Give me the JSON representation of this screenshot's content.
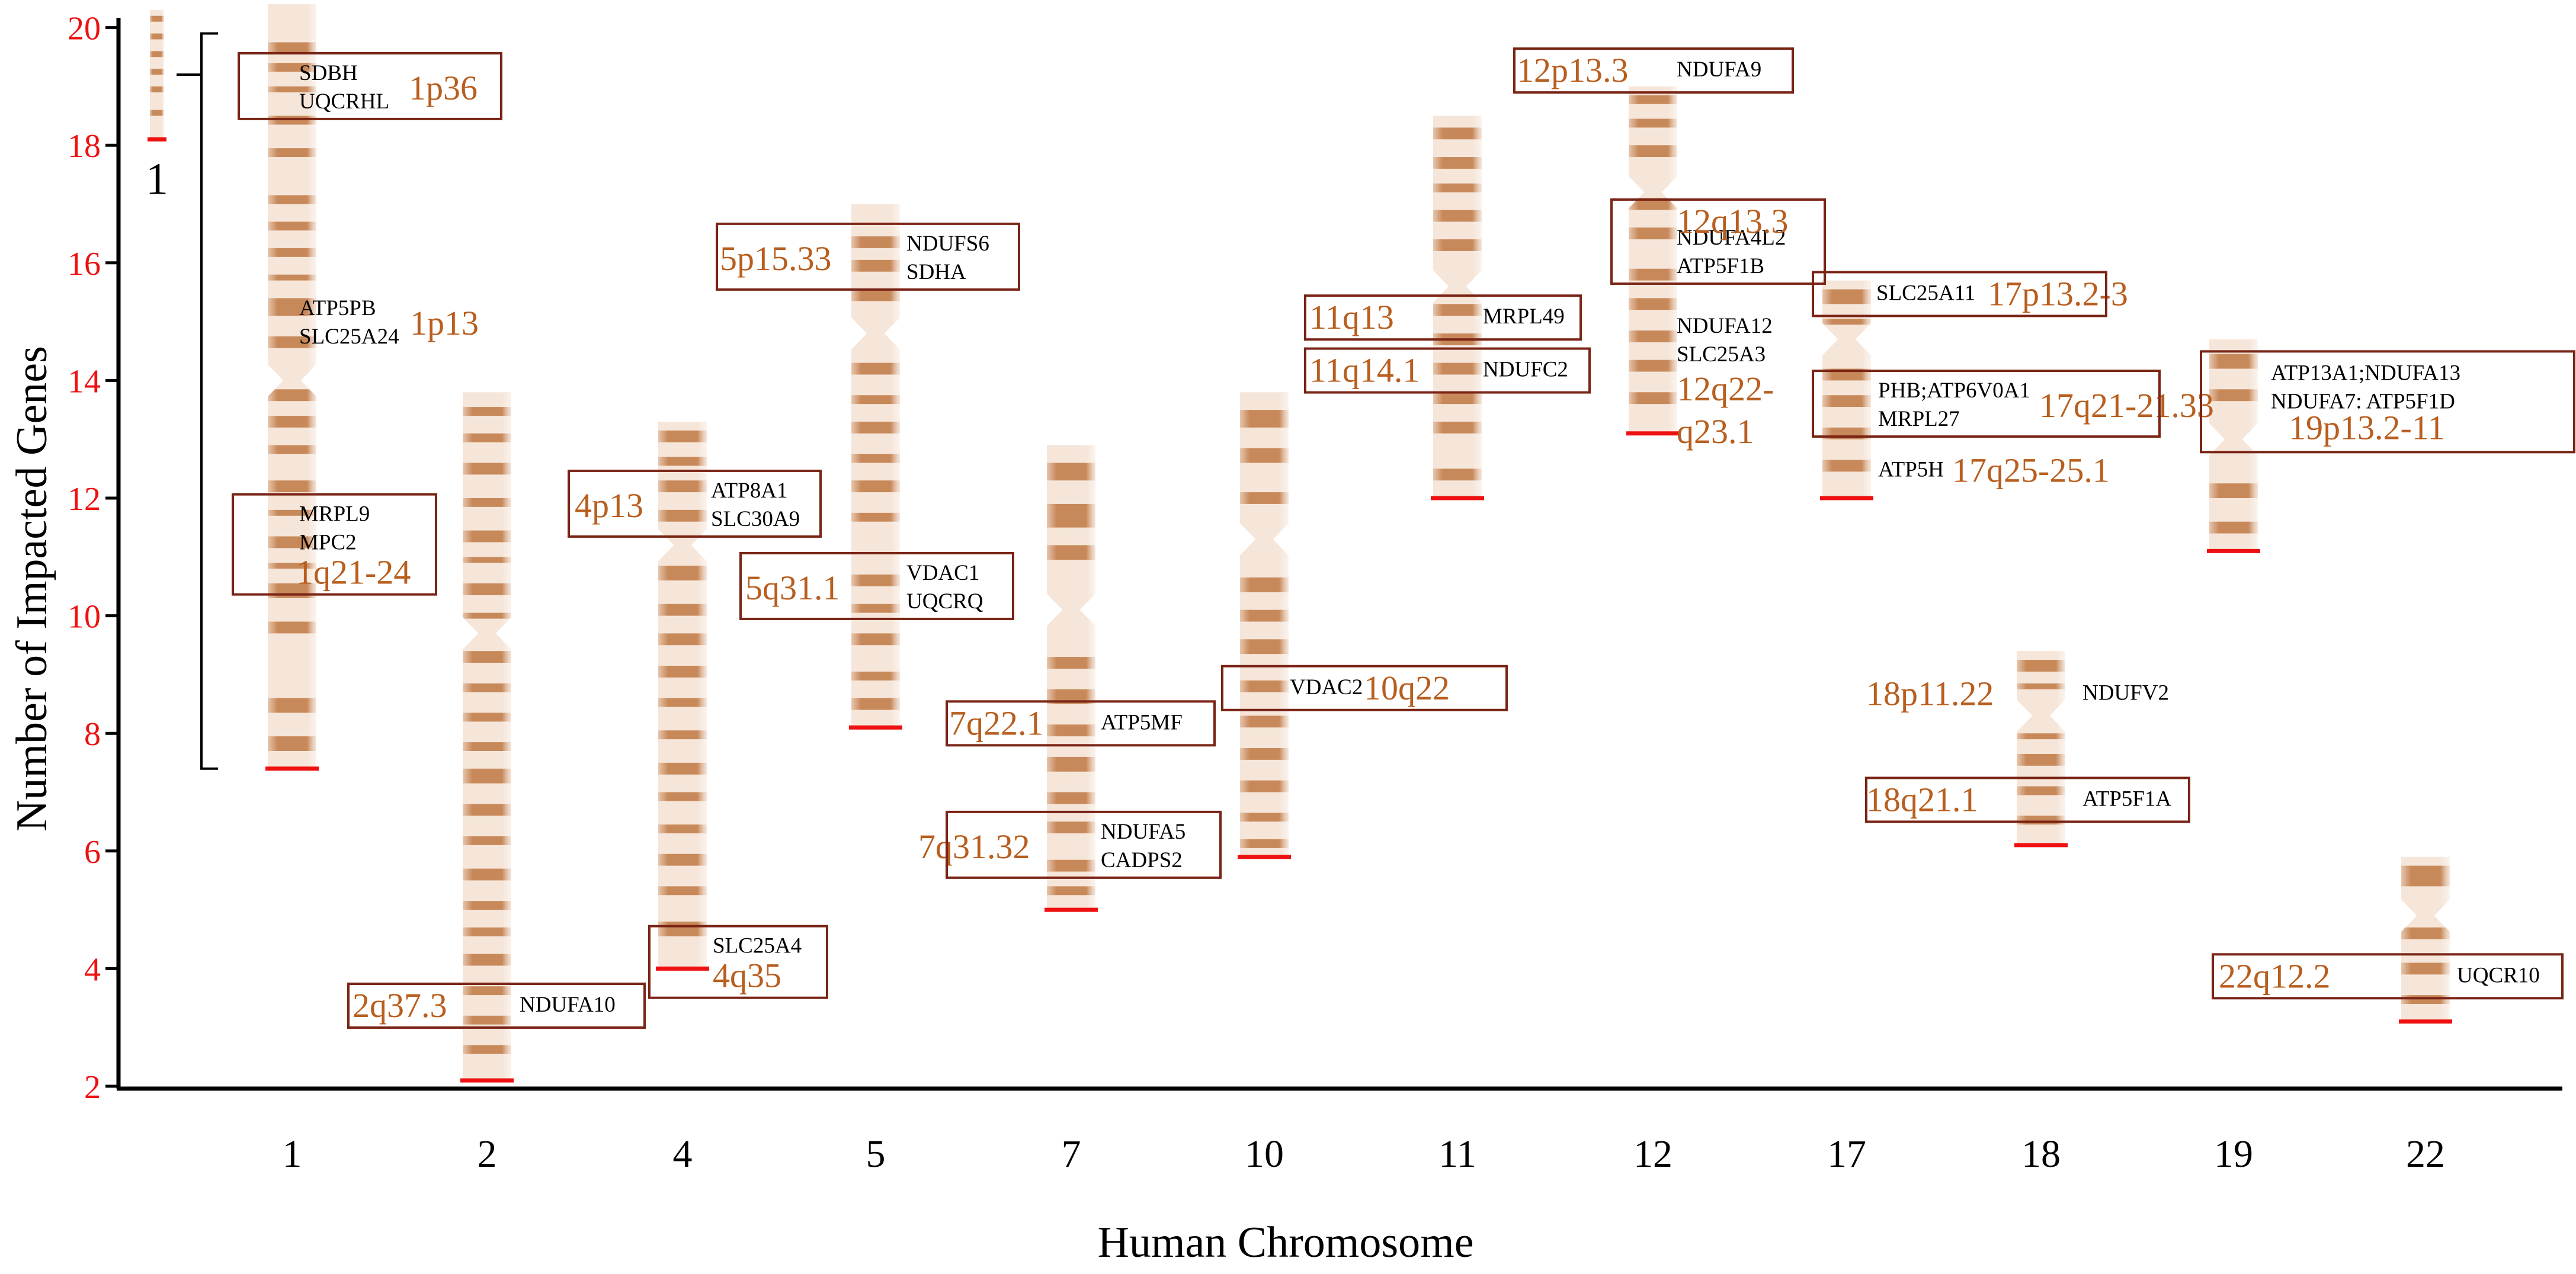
{
  "chart_data": {
    "type": "ideogram",
    "xlabel": "Human Chromosome",
    "ylabel": "Number of  Impacted Genes",
    "ylim": [
      2,
      20.5
    ],
    "yticks": [
      2,
      4,
      6,
      8,
      10,
      12,
      14,
      16,
      18,
      20
    ],
    "yticks_text": [
      "2",
      "4",
      "6",
      "8",
      "10",
      "12",
      "14",
      "16",
      "18",
      "20"
    ],
    "colors": {
      "band": "#c8895a",
      "band_light": "#f6e6da",
      "locus": "#b85e1e",
      "box": "#7a2416",
      "baseline": "#ee1111",
      "tick": "#ee1111",
      "axis": "#000000"
    },
    "inset": {
      "label": "1",
      "top": 20.3,
      "bottom": 18.1,
      "bracket_top": 19.9,
      "bracket_bottom": 7.4
    },
    "chromosomes": [
      {
        "name": "1",
        "top": 20.4,
        "bottom": 7.4,
        "centromere": 14.0,
        "bands": [
          [
            19.55,
            19.75
          ],
          [
            19.25,
            19.4
          ],
          [
            18.9,
            19.0
          ],
          [
            18.35,
            18.5
          ],
          [
            17.8,
            17.95
          ],
          [
            17.0,
            17.15
          ],
          [
            16.55,
            16.7
          ],
          [
            16.1,
            16.25
          ],
          [
            15.7,
            15.8
          ],
          [
            15.1,
            15.4
          ],
          [
            14.55,
            14.75
          ],
          [
            13.65,
            13.85
          ],
          [
            13.2,
            13.4
          ],
          [
            12.75,
            12.9
          ],
          [
            12.1,
            12.3
          ],
          [
            11.7,
            11.8
          ],
          [
            11.15,
            11.35
          ],
          [
            10.8,
            10.9
          ],
          [
            10.3,
            10.55
          ],
          [
            9.7,
            9.9
          ],
          [
            8.35,
            8.6
          ],
          [
            7.7,
            7.95
          ]
        ],
        "groups": [
          {
            "locus": "1p36",
            "genes": [
              "SDBH",
              "UQCRHL"
            ],
            "boxed": true
          },
          {
            "locus": "1p13",
            "genes": [
              "ATP5PB",
              "SLC25A24"
            ],
            "boxed": false
          },
          {
            "locus": "1q21-24",
            "genes": [
              "MRPL9",
              "MPC2"
            ],
            "boxed": true
          }
        ]
      },
      {
        "name": "2",
        "top": 13.8,
        "bottom": 2.1,
        "centromere": 9.7,
        "bands": [
          [
            13.4,
            13.55
          ],
          [
            12.95,
            13.1
          ],
          [
            12.4,
            12.6
          ],
          [
            11.85,
            12.0
          ],
          [
            11.25,
            11.45
          ],
          [
            10.9,
            11.0
          ],
          [
            10.35,
            10.55
          ],
          [
            9.95,
            10.05
          ],
          [
            9.2,
            9.4
          ],
          [
            8.7,
            8.85
          ],
          [
            8.2,
            8.35
          ],
          [
            7.7,
            7.85
          ],
          [
            7.15,
            7.4
          ],
          [
            6.6,
            6.8
          ],
          [
            6.1,
            6.25
          ],
          [
            5.5,
            5.7
          ],
          [
            5.0,
            5.15
          ],
          [
            4.55,
            4.7
          ],
          [
            4.05,
            4.25
          ],
          [
            3.55,
            3.7
          ],
          [
            3.05,
            3.2
          ],
          [
            2.55,
            2.7
          ]
        ],
        "groups": [
          {
            "locus": "2q37.3",
            "genes": [
              "NDUFA10"
            ],
            "boxed": true
          }
        ]
      },
      {
        "name": "4",
        "top": 13.3,
        "bottom": 4.0,
        "centromere": 11.2,
        "bands": [
          [
            12.95,
            13.15
          ],
          [
            12.55,
            12.7
          ],
          [
            12.1,
            12.3
          ],
          [
            11.6,
            11.8
          ],
          [
            10.6,
            10.85
          ],
          [
            10.0,
            10.2
          ],
          [
            9.5,
            9.7
          ],
          [
            8.95,
            9.15
          ],
          [
            8.45,
            8.6
          ],
          [
            7.9,
            8.05
          ],
          [
            7.3,
            7.5
          ],
          [
            6.85,
            7.0
          ],
          [
            6.3,
            6.45
          ],
          [
            5.75,
            5.95
          ],
          [
            5.25,
            5.4
          ],
          [
            4.55,
            4.8
          ]
        ],
        "groups": [
          {
            "locus": "4p13",
            "genes": [
              "ATP8A1",
              "SLC30A9"
            ],
            "boxed": true
          },
          {
            "locus": "4q35",
            "genes": [
              "SLC25A4"
            ],
            "boxed": true
          }
        ]
      },
      {
        "name": "5",
        "top": 17.0,
        "bottom": 8.1,
        "centromere": 14.8,
        "bands": [
          [
            16.25,
            16.45
          ],
          [
            15.85,
            16.05
          ],
          [
            15.35,
            15.55
          ],
          [
            14.1,
            14.3
          ],
          [
            13.6,
            13.75
          ],
          [
            13.1,
            13.3
          ],
          [
            12.6,
            12.75
          ],
          [
            12.1,
            12.3
          ],
          [
            11.6,
            11.75
          ],
          [
            10.5,
            10.7
          ],
          [
            10.05,
            10.2
          ],
          [
            9.5,
            9.7
          ],
          [
            8.9,
            9.05
          ],
          [
            8.4,
            8.6
          ]
        ],
        "groups": [
          {
            "locus": "5p15.33",
            "genes": [
              "NDUFS6",
              "SDHA"
            ],
            "boxed": true
          },
          {
            "locus": "5q31.1",
            "genes": [
              "VDAC1",
              "UQCRQ"
            ],
            "boxed": true
          }
        ]
      },
      {
        "name": "7",
        "top": 12.9,
        "bottom": 5.0,
        "centromere": 10.1,
        "bands": [
          [
            12.3,
            12.6
          ],
          [
            11.5,
            11.9
          ],
          [
            10.95,
            11.2
          ],
          [
            9.1,
            9.3
          ],
          [
            8.5,
            8.75
          ],
          [
            7.95,
            8.15
          ],
          [
            7.35,
            7.6
          ],
          [
            6.8,
            7.0
          ],
          [
            6.3,
            6.5
          ],
          [
            5.65,
            5.85
          ],
          [
            5.25,
            5.4
          ]
        ],
        "groups": [
          {
            "locus": "7q22.1",
            "genes": [
              "ATP5MF"
            ],
            "boxed": true
          },
          {
            "locus": "7q31.32",
            "genes": [
              "NDUFA5",
              "CADPS2"
            ],
            "boxed": true
          }
        ]
      },
      {
        "name": "10",
        "top": 13.8,
        "bottom": 5.9,
        "centromere": 11.3,
        "bands": [
          [
            13.2,
            13.5
          ],
          [
            12.6,
            12.85
          ],
          [
            11.9,
            12.1
          ],
          [
            10.4,
            10.65
          ],
          [
            9.9,
            10.1
          ],
          [
            9.35,
            9.6
          ],
          [
            8.7,
            8.9
          ],
          [
            8.1,
            8.3
          ],
          [
            7.55,
            7.75
          ],
          [
            7.0,
            7.2
          ],
          [
            6.5,
            6.65
          ],
          [
            6.05,
            6.2
          ]
        ],
        "groups": [
          {
            "locus": "10q22",
            "genes": [
              "VDAC2"
            ],
            "boxed": true
          }
        ]
      },
      {
        "name": "11",
        "top": 18.5,
        "bottom": 12.0,
        "centromere": 15.6,
        "bands": [
          [
            18.1,
            18.3
          ],
          [
            17.6,
            17.8
          ],
          [
            17.2,
            17.35
          ],
          [
            16.7,
            16.9
          ],
          [
            16.2,
            16.4
          ],
          [
            15.1,
            15.3
          ],
          [
            14.6,
            14.8
          ],
          [
            14.1,
            14.3
          ],
          [
            13.6,
            13.8
          ],
          [
            13.1,
            13.3
          ],
          [
            12.3,
            12.5
          ]
        ],
        "groups": [
          {
            "locus": "11q13",
            "genes": [
              "MRPL49"
            ],
            "boxed": true
          },
          {
            "locus": "11q14.1",
            "genes": [
              "NDUFC2"
            ],
            "boxed": true
          }
        ]
      },
      {
        "name": "12",
        "top": 19.0,
        "bottom": 13.1,
        "centromere": 17.2,
        "bands": [
          [
            18.7,
            18.85
          ],
          [
            18.3,
            18.45
          ],
          [
            17.8,
            18.0
          ],
          [
            16.9,
            17.1
          ],
          [
            16.4,
            16.6
          ],
          [
            15.7,
            15.9
          ],
          [
            15.2,
            15.4
          ],
          [
            14.65,
            14.85
          ],
          [
            14.15,
            14.35
          ],
          [
            13.6,
            13.8
          ]
        ],
        "groups": [
          {
            "locus": "12p13.3",
            "genes": [
              "NDUFA9"
            ],
            "boxed": true
          },
          {
            "locus": "12q13.3",
            "genes": [
              "NDUFA4L2",
              "ATP5F1B"
            ],
            "boxed": true
          },
          {
            "locus": "12q22-q23.1",
            "genes": [
              "NDUFA12",
              "SLC25A3"
            ],
            "boxed": false
          }
        ]
      },
      {
        "name": "17",
        "top": 15.7,
        "bottom": 12.0,
        "centromere": 14.7,
        "bands": [
          [
            15.3,
            15.55
          ],
          [
            14.95,
            15.05
          ],
          [
            14.0,
            14.2
          ],
          [
            13.55,
            13.75
          ],
          [
            13.0,
            13.2
          ],
          [
            12.45,
            12.65
          ]
        ],
        "groups": [
          {
            "locus": "17p13.2-3",
            "genes": [
              "SLC25A11"
            ],
            "boxed": true
          },
          {
            "locus": "17q21-21.33",
            "genes": [
              "PHB;ATP6V0A1",
              "MRPL27"
            ],
            "boxed": true
          },
          {
            "locus": "17q25-25.1",
            "genes": [
              "ATP5H"
            ],
            "boxed": false
          }
        ]
      },
      {
        "name": "18",
        "top": 9.4,
        "bottom": 6.1,
        "centromere": 8.3,
        "bands": [
          [
            9.05,
            9.25
          ],
          [
            8.75,
            8.85
          ],
          [
            7.9,
            8.0
          ],
          [
            7.45,
            7.65
          ],
          [
            6.95,
            7.1
          ],
          [
            6.45,
            6.6
          ]
        ],
        "groups": [
          {
            "locus": "18p11.22",
            "genes": [
              "NDUFV2"
            ],
            "boxed": false
          },
          {
            "locus": "18q21.1",
            "genes": [
              "ATP5F1A"
            ],
            "boxed": true
          }
        ]
      },
      {
        "name": "19",
        "top": 14.7,
        "bottom": 11.1,
        "centromere": 13.0,
        "bands": [
          [
            14.2,
            14.45
          ],
          [
            13.65,
            13.85
          ],
          [
            12.0,
            12.25
          ],
          [
            11.4,
            11.6
          ]
        ],
        "groups": [
          {
            "locus": "19p13.2-11",
            "genes": [
              "ATP13A1;NDUFA13",
              "NDUFA7: ATP5F1D"
            ],
            "boxed": true
          }
        ]
      },
      {
        "name": "22",
        "top": 5.9,
        "bottom": 3.1,
        "centromere": 4.9,
        "bands": [
          [
            5.4,
            5.75
          ],
          [
            4.5,
            4.7
          ],
          [
            3.9,
            4.1
          ],
          [
            3.4,
            3.55
          ]
        ],
        "groups": [
          {
            "locus": "22q12.2",
            "genes": [
              "UQCR10"
            ],
            "boxed": true
          }
        ]
      }
    ]
  }
}
